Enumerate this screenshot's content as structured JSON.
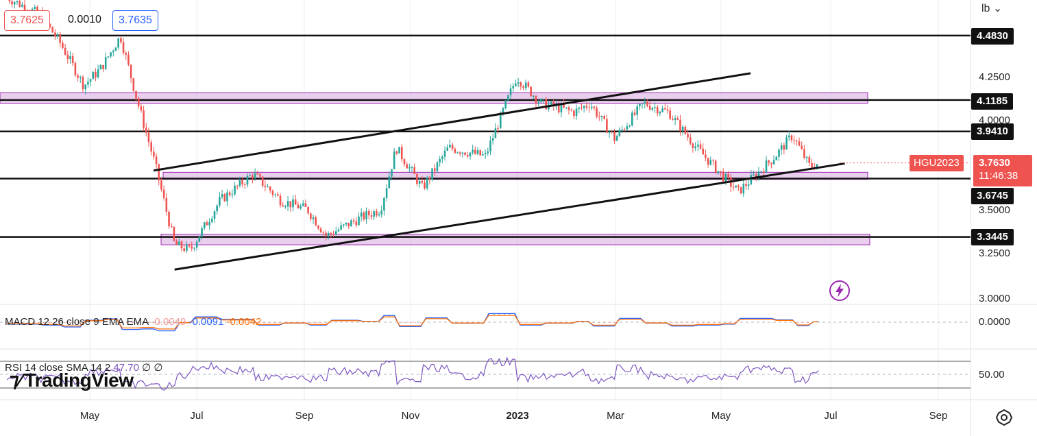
{
  "header": {
    "bid": "3.7625",
    "spread": "0.0010",
    "ask": "3.7635",
    "unit": "lb"
  },
  "symbol": {
    "ticker": "HGU2023",
    "last": "3.7630",
    "countdown": "11:46:38"
  },
  "price_axis": {
    "ticks": [
      "4.2500",
      "4.0000",
      "3.5000",
      "3.2500",
      "3.0000"
    ],
    "level_badges": [
      "4.4830",
      "4.1185",
      "3.9410",
      "3.6745",
      "3.3445"
    ]
  },
  "time_axis": {
    "labels": [
      "May",
      "Jul",
      "Sep",
      "Nov",
      "2023",
      "Mar",
      "May",
      "Jul",
      "Sep"
    ]
  },
  "macd": {
    "label": "MACD 12 26 close 9 EMA EMA",
    "histogram": "-0.0049",
    "macd": "-0.0091",
    "signal": "-0.0042",
    "axis_tick": "0.0000"
  },
  "rsi": {
    "label": "RSI 14 close SMA 14 2",
    "value": "47.70",
    "extra": "∅ ∅",
    "axis_tick": "50.00"
  },
  "brand": "TradingView",
  "colors": {
    "up": "#26a69a",
    "down": "#ef5350",
    "zone": "#e1bee7",
    "zone_border": "#9c27b0",
    "macd_line": "#2962ff",
    "signal_line": "#ff6d00",
    "rsi_line": "#7e57c2"
  },
  "chart_data": {
    "type": "candlestick",
    "title": "HGU2023",
    "ylabel": "lb",
    "ylim": [
      2.9,
      4.6
    ],
    "x_labels": [
      "May",
      "Jul",
      "Sep",
      "Nov",
      "2023",
      "Mar",
      "May",
      "Jul",
      "Sep"
    ],
    "horizontal_levels": [
      4.483,
      4.1185,
      3.941,
      3.6745,
      3.3445
    ],
    "zones": [
      [
        4.1,
        4.16
      ],
      [
        3.67,
        3.71
      ],
      [
        3.3,
        3.36
      ]
    ],
    "trendlines": [
      {
        "from": [
          "2022-06-24",
          3.72
        ],
        "to": [
          "2023-06-01",
          4.27
        ]
      },
      {
        "from": [
          "2022-07-06",
          3.16
        ],
        "to": [
          "2023-07-25",
          3.76
        ]
      }
    ],
    "approx_closes": [
      {
        "x": "2022-04-01",
        "close": 4.7
      },
      {
        "x": "2022-04-20",
        "close": 4.6
      },
      {
        "x": "2022-05-01",
        "close": 4.45
      },
      {
        "x": "2022-05-15",
        "close": 4.2
      },
      {
        "x": "2022-05-25",
        "close": 4.3
      },
      {
        "x": "2022-06-05",
        "close": 4.48
      },
      {
        "x": "2022-06-15",
        "close": 4.1
      },
      {
        "x": "2022-06-25",
        "close": 3.75
      },
      {
        "x": "2022-07-06",
        "close": 3.3
      },
      {
        "x": "2022-07-15",
        "close": 3.27
      },
      {
        "x": "2022-08-01",
        "close": 3.55
      },
      {
        "x": "2022-08-20",
        "close": 3.7
      },
      {
        "x": "2022-09-05",
        "close": 3.55
      },
      {
        "x": "2022-09-20",
        "close": 3.5
      },
      {
        "x": "2022-10-01",
        "close": 3.35
      },
      {
        "x": "2022-10-20",
        "close": 3.45
      },
      {
        "x": "2022-11-01",
        "close": 3.5
      },
      {
        "x": "2022-11-10",
        "close": 3.85
      },
      {
        "x": "2022-11-25",
        "close": 3.62
      },
      {
        "x": "2022-12-10",
        "close": 3.85
      },
      {
        "x": "2022-12-31",
        "close": 3.8
      },
      {
        "x": "2023-01-18",
        "close": 4.25
      },
      {
        "x": "2023-02-01",
        "close": 4.1
      },
      {
        "x": "2023-02-20",
        "close": 4.05
      },
      {
        "x": "2023-03-01",
        "close": 4.1
      },
      {
        "x": "2023-03-15",
        "close": 3.9
      },
      {
        "x": "2023-04-01",
        "close": 4.1
      },
      {
        "x": "2023-04-15",
        "close": 4.05
      },
      {
        "x": "2023-05-01",
        "close": 3.85
      },
      {
        "x": "2023-05-15",
        "close": 3.7
      },
      {
        "x": "2023-05-25",
        "close": 3.6
      },
      {
        "x": "2023-06-15",
        "close": 3.8
      },
      {
        "x": "2023-06-25",
        "close": 3.92
      },
      {
        "x": "2023-07-05",
        "close": 3.74
      },
      {
        "x": "2023-07-10",
        "close": 3.763
      }
    ]
  }
}
